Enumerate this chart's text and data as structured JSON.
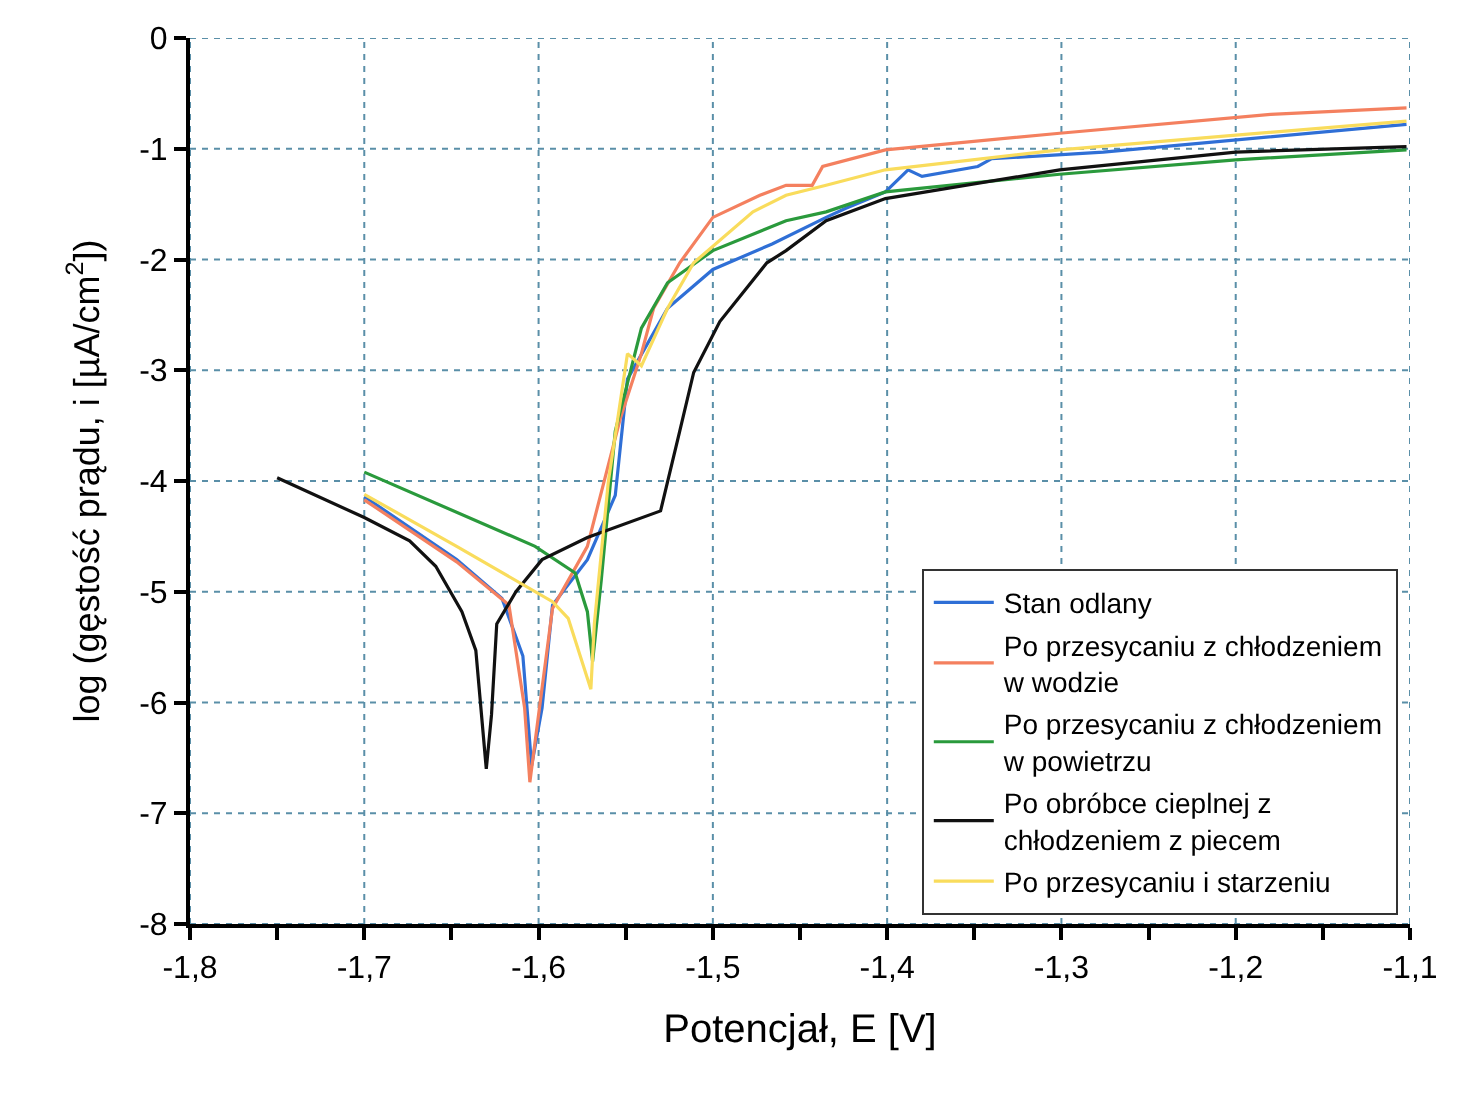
{
  "chart_data": {
    "type": "line",
    "xlabel": "Potencjał, E [V]",
    "ylabel": "log (gęstość prądu, i [µA/cm$^{2}$])",
    "xlim": [
      -1.8,
      -1.1
    ],
    "ylim": [
      -8,
      0
    ],
    "xticks": [
      {
        "value": -1.8,
        "label": "-1,8"
      },
      {
        "value": -1.75,
        "label": null
      },
      {
        "value": -1.7,
        "label": "-1,7"
      },
      {
        "value": -1.65,
        "label": null
      },
      {
        "value": -1.6,
        "label": "-1,6"
      },
      {
        "value": -1.55,
        "label": null
      },
      {
        "value": -1.5,
        "label": "-1,5"
      },
      {
        "value": -1.45,
        "label": null
      },
      {
        "value": -1.4,
        "label": "-1,4"
      },
      {
        "value": -1.35,
        "label": null
      },
      {
        "value": -1.3,
        "label": "-1,3"
      },
      {
        "value": -1.25,
        "label": null
      },
      {
        "value": -1.2,
        "label": "-1,2"
      },
      {
        "value": -1.15,
        "label": null
      },
      {
        "value": -1.1,
        "label": "-1,1"
      }
    ],
    "yticks": [
      -8,
      -7,
      -6,
      -5,
      -4,
      -3,
      -2,
      -1,
      0
    ],
    "grid": true,
    "legend": "bottom right",
    "marker": "none",
    "line_style": "solid",
    "series": [
      {
        "name": "Stan odlany",
        "color": "#2f6fd6",
        "x": [
          -1.7,
          -1.647,
          -1.621,
          -1.609,
          -1.604,
          -1.598,
          -1.592,
          -1.572,
          -1.556,
          -1.549,
          -1.526,
          -1.5,
          -1.466,
          -1.435,
          -1.424,
          -1.401,
          -1.388,
          -1.38,
          -1.348,
          -1.34,
          -1.276,
          -1.102
        ],
        "values": [
          -4.14,
          -4.71,
          -5.06,
          -5.58,
          -6.57,
          -6.05,
          -5.12,
          -4.71,
          -4.13,
          -3.08,
          -2.44,
          -2.09,
          -1.86,
          -1.62,
          -1.54,
          -1.39,
          -1.19,
          -1.25,
          -1.16,
          -1.09,
          -1.03,
          -0.78
        ]
      },
      {
        "name": "Po przesycaniu z chłodzeniem w wodzie",
        "color": "#f4805f",
        "x": [
          -1.7,
          -1.647,
          -1.617,
          -1.608,
          -1.605,
          -1.6,
          -1.592,
          -1.572,
          -1.553,
          -1.541,
          -1.534,
          -1.519,
          -1.5,
          -1.473,
          -1.458,
          -1.443,
          -1.437,
          -1.401,
          -1.301,
          -1.18,
          -1.102
        ],
        "values": [
          -4.17,
          -4.73,
          -5.12,
          -6.05,
          -6.72,
          -6.11,
          -5.15,
          -4.59,
          -3.43,
          -2.85,
          -2.44,
          -2.03,
          -1.62,
          -1.42,
          -1.33,
          -1.33,
          -1.16,
          -1.01,
          -0.86,
          -0.69,
          -0.63
        ]
      },
      {
        "name": "Po przesycaniu z chłodzeniem w powietrzu",
        "color": "#2a9a3c",
        "x": [
          -1.7,
          -1.602,
          -1.579,
          -1.572,
          -1.569,
          -1.564,
          -1.556,
          -1.541,
          -1.526,
          -1.5,
          -1.458,
          -1.435,
          -1.401,
          -1.301,
          -1.2,
          -1.102
        ],
        "values": [
          -3.92,
          -4.59,
          -4.83,
          -5.18,
          -5.63,
          -4.89,
          -3.55,
          -2.62,
          -2.21,
          -1.92,
          -1.65,
          -1.57,
          -1.39,
          -1.23,
          -1.1,
          -1.01
        ]
      },
      {
        "name": "Po obróbce cieplnej z chłodzeniem z piecem",
        "color": "#111111",
        "x": [
          -1.75,
          -1.7,
          -1.674,
          -1.659,
          -1.644,
          -1.636,
          -1.63,
          -1.627,
          -1.624,
          -1.613,
          -1.598,
          -1.572,
          -1.53,
          -1.519,
          -1.511,
          -1.496,
          -1.469,
          -1.458,
          -1.435,
          -1.401,
          -1.301,
          -1.2,
          -1.102
        ],
        "values": [
          -3.97,
          -4.33,
          -4.54,
          -4.77,
          -5.18,
          -5.53,
          -6.6,
          -6.11,
          -5.29,
          -5.0,
          -4.71,
          -4.51,
          -4.27,
          -3.55,
          -3.02,
          -2.56,
          -2.03,
          -1.92,
          -1.65,
          -1.45,
          -1.19,
          -1.03,
          -0.98
        ]
      },
      {
        "name": "Po przesycaniu i starzeniu",
        "color": "#f9dc5c",
        "x": [
          -1.7,
          -1.647,
          -1.592,
          -1.583,
          -1.57,
          -1.568,
          -1.56,
          -1.549,
          -1.541,
          -1.526,
          -1.511,
          -1.477,
          -1.458,
          -1.435,
          -1.401,
          -1.301,
          -1.102
        ],
        "values": [
          -4.12,
          -4.59,
          -5.09,
          -5.24,
          -5.88,
          -5.29,
          -4.01,
          -2.85,
          -2.96,
          -2.44,
          -2.03,
          -1.57,
          -1.42,
          -1.33,
          -1.19,
          -1.01,
          -0.75
        ]
      }
    ]
  }
}
